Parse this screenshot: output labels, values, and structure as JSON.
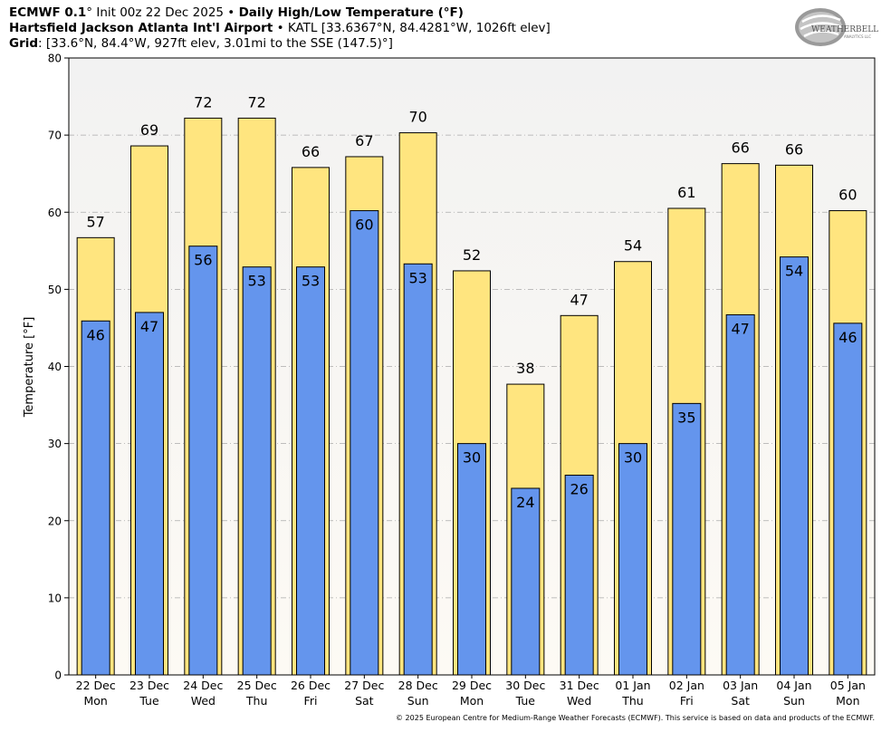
{
  "header": {
    "model": "ECMWF 0.1",
    "init_text": "° Init 00z 22 Dec 2025",
    "product": "Daily High/Low Temperature (°F)",
    "station_name": "Hartsfield Jackson Atlanta Int'l Airport",
    "station_info": "KATL [33.6367°N, 84.4281°W, 1026ft elev]",
    "grid_label": "Grid",
    "grid_info": ": [33.6°N, 84.4°W, 927ft elev, 3.01mi to the SSE (147.5)°]",
    "bullet": " • "
  },
  "logo": {
    "text": "WEATHERBELL",
    "sub": "ANALYTICS LLC"
  },
  "footer": "© 2025 European Centre for Medium-Range Weather Forecasts (ECMWF). This service is based on data and products of the ECMWF.",
  "colors": {
    "high": "#ffe57f",
    "low": "#6495ed",
    "plot_bg_top": "#f2f2f2",
    "plot_bg_bottom": "#fdfaf4",
    "grid": "#aaaaaa"
  },
  "chart_data": {
    "type": "bar",
    "title": "Daily High/Low Temperature (°F)",
    "ylabel": "Temperature [°F]",
    "xlabel": "",
    "ylim": [
      0,
      80
    ],
    "yticks": [
      0,
      10,
      20,
      30,
      40,
      50,
      60,
      70,
      80
    ],
    "grid": true,
    "categories": [
      {
        "date": "22 Dec",
        "day": "Mon"
      },
      {
        "date": "23 Dec",
        "day": "Tue"
      },
      {
        "date": "24 Dec",
        "day": "Wed"
      },
      {
        "date": "25 Dec",
        "day": "Thu"
      },
      {
        "date": "26 Dec",
        "day": "Fri"
      },
      {
        "date": "27 Dec",
        "day": "Sat"
      },
      {
        "date": "28 Dec",
        "day": "Sun"
      },
      {
        "date": "29 Dec",
        "day": "Mon"
      },
      {
        "date": "30 Dec",
        "day": "Tue"
      },
      {
        "date": "31 Dec",
        "day": "Wed"
      },
      {
        "date": "01 Jan",
        "day": "Thu"
      },
      {
        "date": "02 Jan",
        "day": "Fri"
      },
      {
        "date": "03 Jan",
        "day": "Sat"
      },
      {
        "date": "04 Jan",
        "day": "Sun"
      },
      {
        "date": "05 Jan",
        "day": "Mon"
      }
    ],
    "series": [
      {
        "name": "High",
        "values": [
          56.7,
          68.6,
          72.2,
          72.2,
          65.8,
          67.2,
          70.3,
          52.4,
          37.7,
          46.6,
          53.6,
          60.5,
          66.3,
          66.1,
          60.2
        ],
        "labels": [
          "57",
          "69",
          "72",
          "72",
          "66",
          "67",
          "70",
          "52",
          "38",
          "47",
          "54",
          "61",
          "66",
          "66",
          "60"
        ]
      },
      {
        "name": "Low",
        "values": [
          45.9,
          47.0,
          55.6,
          52.9,
          52.9,
          60.2,
          53.3,
          30.0,
          24.2,
          25.9,
          30.0,
          35.2,
          46.7,
          54.2,
          45.6
        ],
        "labels": [
          "46",
          "47",
          "56",
          "53",
          "53",
          "60",
          "53",
          "30",
          "24",
          "26",
          "30",
          "35",
          "47",
          "54",
          "46"
        ]
      }
    ]
  }
}
